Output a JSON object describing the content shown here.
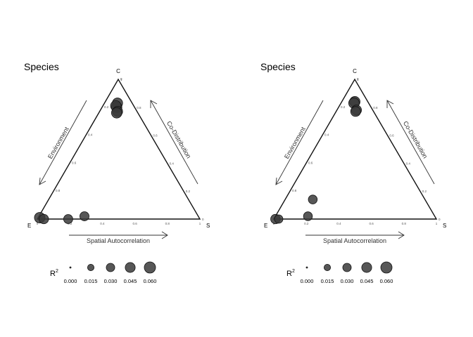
{
  "chart_data": [
    {
      "type": "scatter",
      "subtype": "ternary",
      "title": "Species",
      "vertex_labels": {
        "top": "C",
        "left": "E",
        "right": "S"
      },
      "axis_labels": {
        "environment": "Environment",
        "codistribution": "Co-Distribution",
        "spatial": "Spatial Autocorrelation"
      },
      "ticks": [
        "0",
        "0.2",
        "0.4",
        "0.6",
        "0.8",
        "1"
      ],
      "points": [
        {
          "C": 0.83,
          "S": 0.08,
          "r2": 0.048
        },
        {
          "C": 0.8,
          "S": 0.09,
          "r2": 0.05
        },
        {
          "C": 0.81,
          "S": 0.08,
          "r2": 0.052
        },
        {
          "C": 0.77,
          "S": 0.11,
          "r2": 0.047
        },
        {
          "C": 0.76,
          "S": 0.11,
          "r2": 0.05
        },
        {
          "C": 0.01,
          "S": 0.01,
          "r2": 0.052
        },
        {
          "C": 0.0,
          "S": 0.04,
          "r2": 0.04
        },
        {
          "C": 0.0,
          "S": 0.19,
          "r2": 0.036
        },
        {
          "C": 0.02,
          "S": 0.28,
          "r2": 0.037
        }
      ]
    },
    {
      "type": "scatter",
      "subtype": "ternary",
      "title": "Species",
      "vertex_labels": {
        "top": "C",
        "left": "E",
        "right": "S"
      },
      "axis_labels": {
        "environment": "Environment",
        "codistribution": "Co-Distribution",
        "spatial": "Spatial Autocorrelation"
      },
      "ticks": [
        "0",
        "0.2",
        "0.4",
        "0.6",
        "0.8",
        "1"
      ],
      "points": [
        {
          "C": 0.84,
          "S": 0.08,
          "r2": 0.05
        },
        {
          "C": 0.83,
          "S": 0.08,
          "r2": 0.052
        },
        {
          "C": 0.78,
          "S": 0.12,
          "r2": 0.046
        },
        {
          "C": 0.77,
          "S": 0.12,
          "r2": 0.045
        },
        {
          "C": 0.14,
          "S": 0.17,
          "r2": 0.034
        },
        {
          "C": 0.02,
          "S": 0.2,
          "r2": 0.034
        },
        {
          "C": 0.0,
          "S": 0.01,
          "r2": 0.04
        },
        {
          "C": 0.0,
          "S": 0.03,
          "r2": 0.03
        }
      ]
    }
  ],
  "legend": {
    "title": "R",
    "title_sup": "2",
    "items": [
      {
        "label": "0.000",
        "value": 0.0
      },
      {
        "label": "0.015",
        "value": 0.015
      },
      {
        "label": "0.030",
        "value": 0.03
      },
      {
        "label": "0.045",
        "value": 0.045
      },
      {
        "label": "0.060",
        "value": 0.06
      }
    ]
  },
  "colors": {
    "point_fill": "#3a3a3a",
    "point_stroke": "#111111",
    "frame": "#111111"
  }
}
